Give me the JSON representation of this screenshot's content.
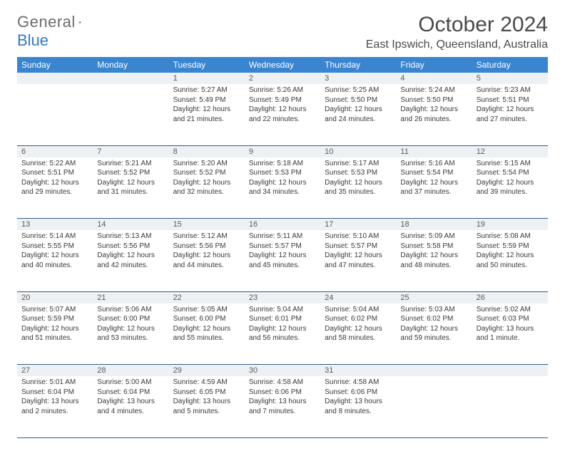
{
  "logo": {
    "part1": "General",
    "part2": "Blue"
  },
  "title": "October 2024",
  "location": "East Ipswich, Queensland, Australia",
  "colors": {
    "header_bg": "#3a85d0",
    "header_fg": "#ffffff",
    "daynum_bg": "#eef1f3",
    "row_border": "#2f5d8a",
    "logo_gray": "#6b6b6b",
    "logo_blue": "#2f78c4",
    "text": "#3a3a3a"
  },
  "weekdays": [
    "Sunday",
    "Monday",
    "Tuesday",
    "Wednesday",
    "Thursday",
    "Friday",
    "Saturday"
  ],
  "weeks": [
    [
      null,
      null,
      {
        "n": "1",
        "sr": "5:27 AM",
        "ss": "5:49 PM",
        "dl": "12 hours and 21 minutes."
      },
      {
        "n": "2",
        "sr": "5:26 AM",
        "ss": "5:49 PM",
        "dl": "12 hours and 22 minutes."
      },
      {
        "n": "3",
        "sr": "5:25 AM",
        "ss": "5:50 PM",
        "dl": "12 hours and 24 minutes."
      },
      {
        "n": "4",
        "sr": "5:24 AM",
        "ss": "5:50 PM",
        "dl": "12 hours and 26 minutes."
      },
      {
        "n": "5",
        "sr": "5:23 AM",
        "ss": "5:51 PM",
        "dl": "12 hours and 27 minutes."
      }
    ],
    [
      {
        "n": "6",
        "sr": "5:22 AM",
        "ss": "5:51 PM",
        "dl": "12 hours and 29 minutes."
      },
      {
        "n": "7",
        "sr": "5:21 AM",
        "ss": "5:52 PM",
        "dl": "12 hours and 31 minutes."
      },
      {
        "n": "8",
        "sr": "5:20 AM",
        "ss": "5:52 PM",
        "dl": "12 hours and 32 minutes."
      },
      {
        "n": "9",
        "sr": "5:18 AM",
        "ss": "5:53 PM",
        "dl": "12 hours and 34 minutes."
      },
      {
        "n": "10",
        "sr": "5:17 AM",
        "ss": "5:53 PM",
        "dl": "12 hours and 35 minutes."
      },
      {
        "n": "11",
        "sr": "5:16 AM",
        "ss": "5:54 PM",
        "dl": "12 hours and 37 minutes."
      },
      {
        "n": "12",
        "sr": "5:15 AM",
        "ss": "5:54 PM",
        "dl": "12 hours and 39 minutes."
      }
    ],
    [
      {
        "n": "13",
        "sr": "5:14 AM",
        "ss": "5:55 PM",
        "dl": "12 hours and 40 minutes."
      },
      {
        "n": "14",
        "sr": "5:13 AM",
        "ss": "5:56 PM",
        "dl": "12 hours and 42 minutes."
      },
      {
        "n": "15",
        "sr": "5:12 AM",
        "ss": "5:56 PM",
        "dl": "12 hours and 44 minutes."
      },
      {
        "n": "16",
        "sr": "5:11 AM",
        "ss": "5:57 PM",
        "dl": "12 hours and 45 minutes."
      },
      {
        "n": "17",
        "sr": "5:10 AM",
        "ss": "5:57 PM",
        "dl": "12 hours and 47 minutes."
      },
      {
        "n": "18",
        "sr": "5:09 AM",
        "ss": "5:58 PM",
        "dl": "12 hours and 48 minutes."
      },
      {
        "n": "19",
        "sr": "5:08 AM",
        "ss": "5:59 PM",
        "dl": "12 hours and 50 minutes."
      }
    ],
    [
      {
        "n": "20",
        "sr": "5:07 AM",
        "ss": "5:59 PM",
        "dl": "12 hours and 51 minutes."
      },
      {
        "n": "21",
        "sr": "5:06 AM",
        "ss": "6:00 PM",
        "dl": "12 hours and 53 minutes."
      },
      {
        "n": "22",
        "sr": "5:05 AM",
        "ss": "6:00 PM",
        "dl": "12 hours and 55 minutes."
      },
      {
        "n": "23",
        "sr": "5:04 AM",
        "ss": "6:01 PM",
        "dl": "12 hours and 56 minutes."
      },
      {
        "n": "24",
        "sr": "5:04 AM",
        "ss": "6:02 PM",
        "dl": "12 hours and 58 minutes."
      },
      {
        "n": "25",
        "sr": "5:03 AM",
        "ss": "6:02 PM",
        "dl": "12 hours and 59 minutes."
      },
      {
        "n": "26",
        "sr": "5:02 AM",
        "ss": "6:03 PM",
        "dl": "13 hours and 1 minute."
      }
    ],
    [
      {
        "n": "27",
        "sr": "5:01 AM",
        "ss": "6:04 PM",
        "dl": "13 hours and 2 minutes."
      },
      {
        "n": "28",
        "sr": "5:00 AM",
        "ss": "6:04 PM",
        "dl": "13 hours and 4 minutes."
      },
      {
        "n": "29",
        "sr": "4:59 AM",
        "ss": "6:05 PM",
        "dl": "13 hours and 5 minutes."
      },
      {
        "n": "30",
        "sr": "4:58 AM",
        "ss": "6:06 PM",
        "dl": "13 hours and 7 minutes."
      },
      {
        "n": "31",
        "sr": "4:58 AM",
        "ss": "6:06 PM",
        "dl": "13 hours and 8 minutes."
      },
      null,
      null
    ]
  ],
  "labels": {
    "sunrise": "Sunrise:",
    "sunset": "Sunset:",
    "daylight": "Daylight:"
  }
}
